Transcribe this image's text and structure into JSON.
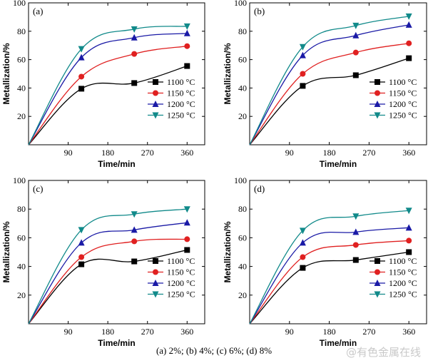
{
  "chart_data": [
    {
      "type": "line",
      "panel_label": "(a)",
      "xlabel": "Time/min",
      "ylabel": "Metallization/%",
      "xlim": [
        0,
        400
      ],
      "ylim": [
        0,
        100
      ],
      "xticks": [
        90,
        180,
        270,
        360
      ],
      "yticks": [
        20,
        40,
        60,
        80,
        100
      ],
      "legend_position": "lower-right",
      "x": [
        0,
        120,
        240,
        360
      ],
      "series": [
        {
          "name": "1100 °C",
          "color": "#000000",
          "marker": "square",
          "values": [
            0,
            39.5,
            43.5,
            55.5
          ]
        },
        {
          "name": "1150 °C",
          "color": "#e02020",
          "marker": "circle",
          "values": [
            0,
            48,
            64,
            69.5
          ]
        },
        {
          "name": "1200 °C",
          "color": "#1a1aa6",
          "marker": "triangle-up",
          "values": [
            0,
            61.5,
            75.5,
            78.5
          ]
        },
        {
          "name": "1250 °C",
          "color": "#118a8a",
          "marker": "triangle-down",
          "values": [
            0,
            67.5,
            81.5,
            83.5
          ]
        }
      ]
    },
    {
      "type": "line",
      "panel_label": "(b)",
      "xlabel": "Time/min",
      "ylabel": "Metallization/%",
      "xlim": [
        0,
        400
      ],
      "ylim": [
        0,
        100
      ],
      "xticks": [
        90,
        180,
        270,
        360
      ],
      "yticks": [
        20,
        40,
        60,
        80,
        100
      ],
      "legend_position": "lower-right",
      "x": [
        0,
        120,
        240,
        360
      ],
      "series": [
        {
          "name": "1100 °C",
          "color": "#000000",
          "marker": "square",
          "values": [
            0,
            41.5,
            49,
            61
          ]
        },
        {
          "name": "1150 °C",
          "color": "#e02020",
          "marker": "circle",
          "values": [
            0,
            50,
            65,
            71.5
          ]
        },
        {
          "name": "1200 °C",
          "color": "#1a1aa6",
          "marker": "triangle-up",
          "values": [
            0,
            63,
            77,
            84.5
          ]
        },
        {
          "name": "1250 °C",
          "color": "#118a8a",
          "marker": "triangle-down",
          "values": [
            0,
            69,
            84,
            90.5
          ]
        }
      ]
    },
    {
      "type": "line",
      "panel_label": "(c)",
      "xlabel": "Time/min",
      "ylabel": "Metallization/%",
      "xlim": [
        0,
        400
      ],
      "ylim": [
        0,
        100
      ],
      "xticks": [
        90,
        180,
        270,
        360
      ],
      "yticks": [
        20,
        40,
        60,
        80,
        100
      ],
      "legend_position": "lower-right",
      "x": [
        0,
        120,
        240,
        360
      ],
      "series": [
        {
          "name": "1100 °C",
          "color": "#000000",
          "marker": "square",
          "values": [
            0,
            41.5,
            43.5,
            51.5
          ]
        },
        {
          "name": "1150 °C",
          "color": "#e02020",
          "marker": "circle",
          "values": [
            0,
            46.5,
            57.5,
            59
          ]
        },
        {
          "name": "1200 °C",
          "color": "#1a1aa6",
          "marker": "triangle-up",
          "values": [
            0,
            56.5,
            65.5,
            70.5
          ]
        },
        {
          "name": "1250 °C",
          "color": "#118a8a",
          "marker": "triangle-down",
          "values": [
            0,
            65.5,
            76.5,
            80
          ]
        }
      ]
    },
    {
      "type": "line",
      "panel_label": "(d)",
      "xlabel": "Time/min",
      "ylabel": "Metallization/%",
      "xlim": [
        0,
        400
      ],
      "ylim": [
        0,
        100
      ],
      "xticks": [
        90,
        180,
        270,
        360
      ],
      "yticks": [
        20,
        40,
        60,
        80,
        100
      ],
      "legend_position": "lower-right",
      "x": [
        0,
        120,
        240,
        360
      ],
      "series": [
        {
          "name": "1100 °C",
          "color": "#000000",
          "marker": "square",
          "values": [
            0,
            39,
            44.5,
            50
          ]
        },
        {
          "name": "1150 °C",
          "color": "#e02020",
          "marker": "circle",
          "values": [
            0,
            46.5,
            55,
            58
          ]
        },
        {
          "name": "1200 °C",
          "color": "#1a1aa6",
          "marker": "triangle-up",
          "values": [
            0,
            56.5,
            64,
            67
          ]
        },
        {
          "name": "1250 °C",
          "color": "#118a8a",
          "marker": "triangle-down",
          "values": [
            0,
            65,
            75,
            79
          ]
        }
      ]
    }
  ],
  "caption": "(a) 2%; (b) 4%; (c) 6%; (d) 8%",
  "watermark": "@有色金属在线"
}
